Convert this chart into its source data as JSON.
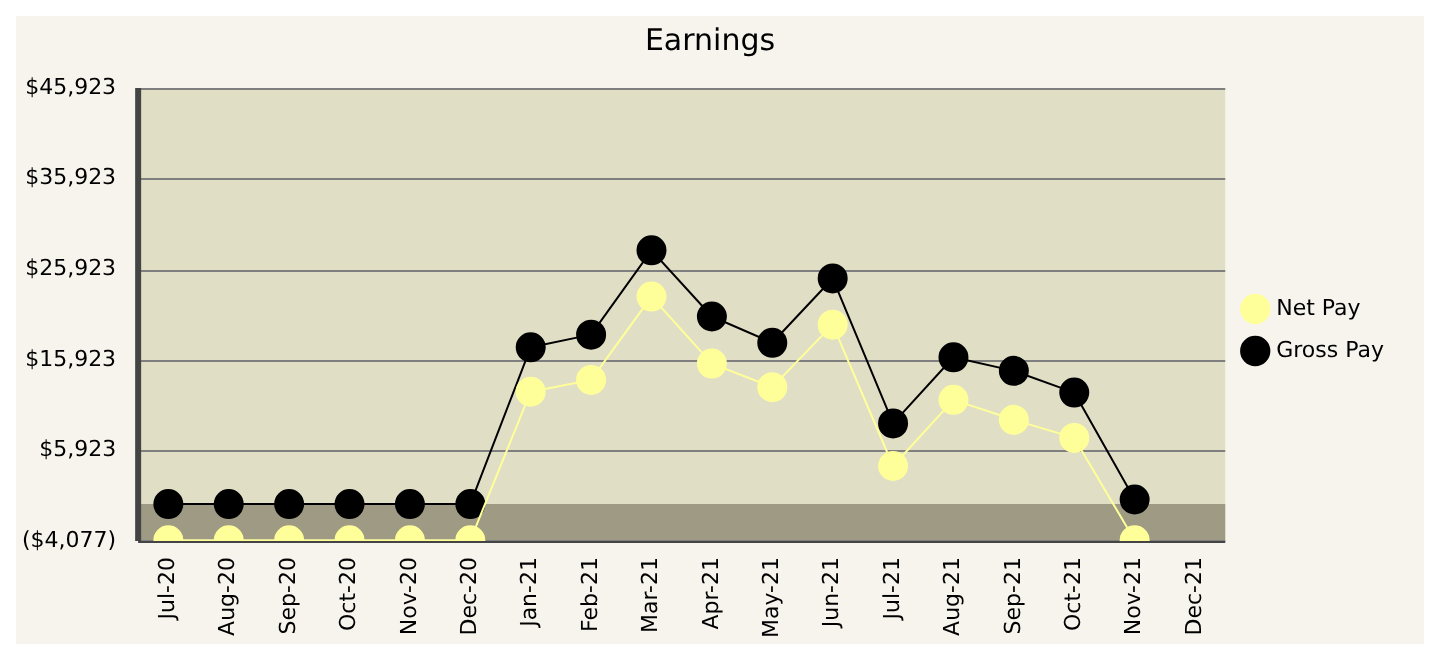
{
  "chart_data": {
    "type": "line",
    "title": "Earnings",
    "categories": [
      "Jul-20",
      "Aug-20",
      "Sep-20",
      "Oct-20",
      "Nov-20",
      "Dec-20",
      "Jan-21",
      "Feb-21",
      "Mar-21",
      "Apr-21",
      "May-21",
      "Jun-21",
      "Jul-21",
      "Aug-21",
      "Sep-21",
      "Oct-21",
      "Nov-21",
      "Dec-21"
    ],
    "series": [
      {
        "name": "Net Pay",
        "color": "#ffff99",
        "values": [
          -4000,
          -4000,
          -4000,
          -4000,
          -4000,
          -4000,
          12400,
          13700,
          22900,
          15500,
          12900,
          19800,
          4200,
          11500,
          9300,
          7300,
          -4000,
          null
        ]
      },
      {
        "name": "Gross Pay",
        "color": "#000000",
        "values": [
          0,
          0,
          0,
          0,
          0,
          0,
          17300,
          18700,
          28000,
          20700,
          17800,
          24900,
          8900,
          16200,
          14700,
          12300,
          500,
          null
        ]
      }
    ],
    "ylim": [
      -4077,
      45923
    ],
    "yticks": [
      {
        "value": -4077,
        "label": "($4,077)"
      },
      {
        "value": 5923,
        "label": "$5,923"
      },
      {
        "value": 15923,
        "label": "$15,923"
      },
      {
        "value": 25923,
        "label": "$25,923"
      },
      {
        "value": 35923,
        "label": "$35,923"
      },
      {
        "value": 45923,
        "label": "$45,923"
      }
    ],
    "bands": [
      {
        "axis": "y",
        "from": -4077,
        "to": 0,
        "color": "#9e9a84"
      }
    ],
    "grid": "y",
    "legend": "right",
    "marker": "circle",
    "line_style": "solid"
  }
}
